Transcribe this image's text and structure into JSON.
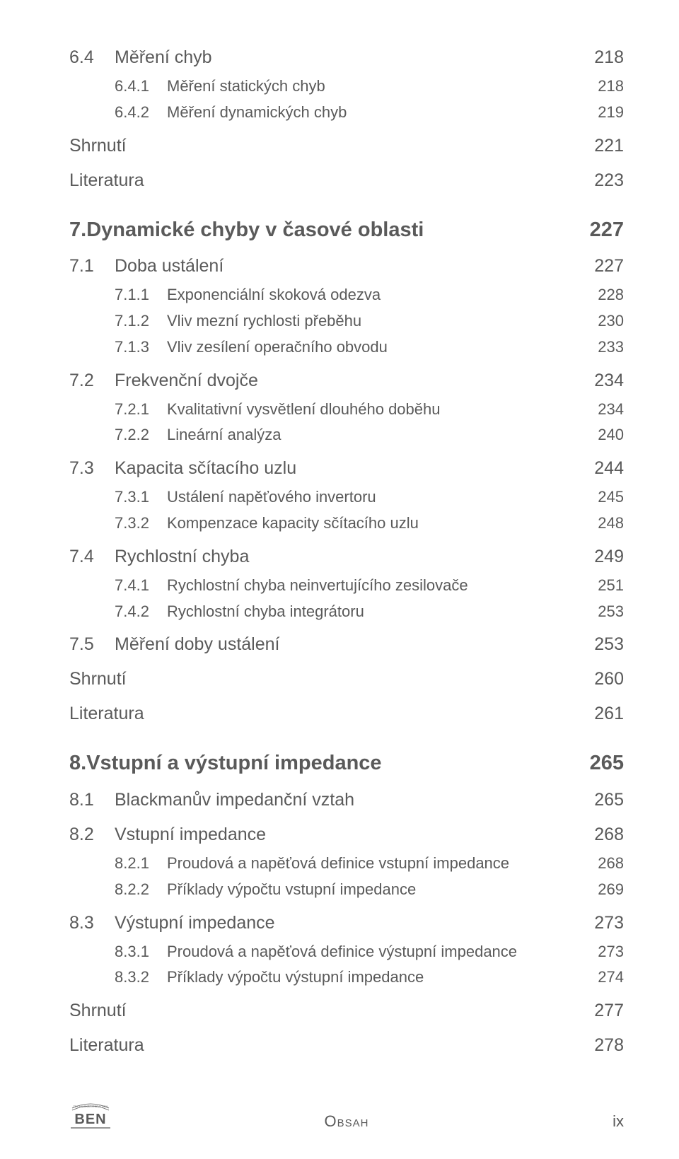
{
  "colors": {
    "text": "#5a5a5a",
    "background": "#ffffff"
  },
  "typography": {
    "family": "Arial",
    "chapter_fontsize": 29,
    "h1_fontsize": 25,
    "h2_fontsize": 22,
    "footer_fontsize": 22
  },
  "toc": [
    {
      "level": "h1",
      "num": "6.4",
      "title": "Měření chyb",
      "page": "218"
    },
    {
      "level": "h2",
      "num": "6.4.1",
      "title": "Měření statických chyb",
      "page": "218"
    },
    {
      "level": "h2",
      "num": "6.4.2",
      "title": "Měření dynamických chyb",
      "page": "219"
    },
    {
      "level": "end",
      "num": "",
      "title": "Shrnutí",
      "page": "221"
    },
    {
      "level": "end",
      "num": "",
      "title": "Literatura",
      "page": "223"
    },
    {
      "level": "chapter",
      "num": "7.",
      "title": "Dynamické chyby v časové oblasti",
      "page": "227"
    },
    {
      "level": "h1",
      "num": "7.1",
      "title": "Doba ustálení",
      "page": "227"
    },
    {
      "level": "h2",
      "num": "7.1.1",
      "title": "Exponenciální skoková odezva",
      "page": "228"
    },
    {
      "level": "h2",
      "num": "7.1.2",
      "title": "Vliv mezní rychlosti přeběhu",
      "page": "230"
    },
    {
      "level": "h2",
      "num": "7.1.3",
      "title": "Vliv zesílení operačního obvodu",
      "page": "233"
    },
    {
      "level": "h1",
      "num": "7.2",
      "title": "Frekvenční dvojče",
      "page": "234"
    },
    {
      "level": "h2",
      "num": "7.2.1",
      "title": "Kvalitativní vysvětlení dlouhého doběhu",
      "page": "234"
    },
    {
      "level": "h2",
      "num": "7.2.2",
      "title": "Lineární analýza",
      "page": "240"
    },
    {
      "level": "h1",
      "num": "7.3",
      "title": "Kapacita sčítacího uzlu",
      "page": "244"
    },
    {
      "level": "h2",
      "num": "7.3.1",
      "title": "Ustálení napěťového invertoru",
      "page": "245"
    },
    {
      "level": "h2",
      "num": "7.3.2",
      "title": "Kompenzace kapacity sčítacího uzlu",
      "page": "248"
    },
    {
      "level": "h1",
      "num": "7.4",
      "title": "Rychlostní chyba",
      "page": "249"
    },
    {
      "level": "h2",
      "num": "7.4.1",
      "title": "Rychlostní chyba neinvertujícího zesilovače",
      "page": "251"
    },
    {
      "level": "h2",
      "num": "7.4.2",
      "title": "Rychlostní chyba integrátoru",
      "page": "253"
    },
    {
      "level": "h1",
      "num": "7.5",
      "title": "Měření doby ustálení",
      "page": "253"
    },
    {
      "level": "end",
      "num": "",
      "title": "Shrnutí",
      "page": "260"
    },
    {
      "level": "end",
      "num": "",
      "title": "Literatura",
      "page": "261"
    },
    {
      "level": "chapter",
      "num": "8.",
      "title": "Vstupní a výstupní impedance",
      "page": "265"
    },
    {
      "level": "h1",
      "num": "8.1",
      "title": "Blackmanův impedanční vztah",
      "page": "265"
    },
    {
      "level": "h1",
      "num": "8.2",
      "title": "Vstupní impedance",
      "page": "268"
    },
    {
      "level": "h2",
      "num": "8.2.1",
      "title": "Proudová a napěťová definice vstupní impedance",
      "page": "268"
    },
    {
      "level": "h2",
      "num": "8.2.2",
      "title": "Příklady výpočtu vstupní impedance",
      "page": "269"
    },
    {
      "level": "h1",
      "num": "8.3",
      "title": "Výstupní impedance",
      "page": "273"
    },
    {
      "level": "h2",
      "num": "8.3.1",
      "title": "Proudová a napěťová definice výstupní impedance",
      "page": "273"
    },
    {
      "level": "h2",
      "num": "8.3.2",
      "title": "Příklady výpočtu výstupní impedance",
      "page": "274"
    },
    {
      "level": "end",
      "num": "",
      "title": "Shrnutí",
      "page": "277"
    },
    {
      "level": "end",
      "num": "",
      "title": "Literatura",
      "page": "278"
    }
  ],
  "footer": {
    "center": "Obsah",
    "page_label": "ix",
    "logo_top": "TECHNICKÁ LITERATURA",
    "logo_main": "BEN"
  }
}
